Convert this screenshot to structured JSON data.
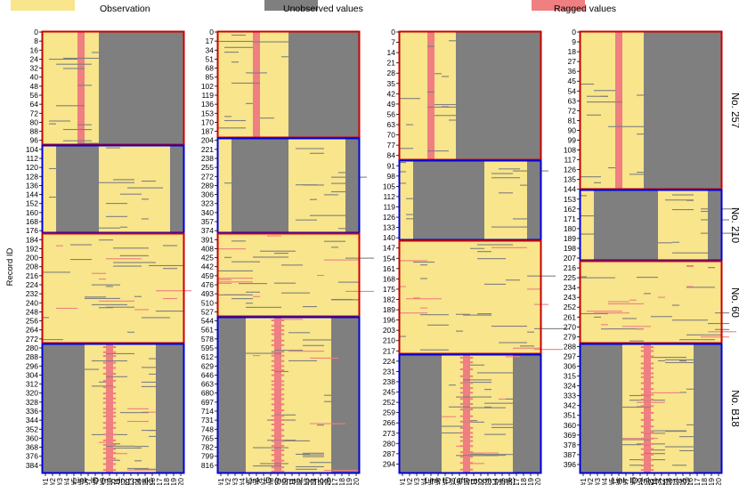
{
  "chart_data": {
    "type": "heatmap",
    "legend": {
      "placement": "top",
      "items": [
        {
          "key": "observation",
          "label": "Observation",
          "color": "#f8e58c"
        },
        {
          "key": "unobserved",
          "label": "Unobserved values",
          "color": "#7f7f7f"
        },
        {
          "key": "ragged",
          "label": "Ragged values",
          "color": "#ef7f80"
        }
      ]
    },
    "ylabel": "Record ID",
    "xticks": [
      "#1",
      "#2",
      "#3",
      "#4",
      "#5",
      "#6",
      "#7",
      "#8",
      "#9",
      "#10",
      "#11",
      "#12",
      "#13",
      "#14",
      "#15",
      "#16",
      "#17",
      "#18",
      "#19",
      "#20"
    ],
    "block_border_colors": [
      "#cc0000",
      "#0000dd",
      "#cc0000",
      "#0000dd"
    ],
    "block_labels": [
      "No. 257",
      "No. 210",
      "No. 60",
      "No. B18"
    ],
    "panels": [
      {
        "xlabel": "Link ID (moring peak)",
        "yticks": [
          "0",
          "8",
          "16",
          "24",
          "32",
          "40",
          "48",
          "56",
          "64",
          "72",
          "80",
          "88",
          "96",
          "104",
          "112",
          "120",
          "128",
          "136",
          "144",
          "152",
          "160",
          "168",
          "176",
          "184",
          "192",
          "200",
          "208",
          "216",
          "224",
          "232",
          "240",
          "248",
          "256",
          "264",
          "272",
          "280",
          "288",
          "296",
          "304",
          "312",
          "320",
          "328",
          "336",
          "344",
          "352",
          "360",
          "368",
          "376",
          "384"
        ],
        "blocks": [
          {
            "id_range": [
              0,
              106
            ],
            "observed_links": [
              "#1",
              "#2",
              "#3",
              "#4",
              "#5",
              "#6",
              "#7",
              "#8"
            ],
            "ragged_links": [
              "#6"
            ],
            "unobserved_links": [
              "#9",
              "#10",
              "#11",
              "#12",
              "#13",
              "#14",
              "#15",
              "#16",
              "#17",
              "#18",
              "#19",
              "#20"
            ]
          },
          {
            "id_range": [
              107,
              187
            ],
            "observed_links": [
              "#1",
              "#2",
              "#9",
              "#10",
              "#11",
              "#12",
              "#13",
              "#14",
              "#15",
              "#16",
              "#17",
              "#18"
            ],
            "ragged_links": [],
            "unobserved_links": [
              "#3",
              "#4",
              "#5",
              "#6",
              "#7",
              "#8",
              "#19",
              "#20"
            ]
          },
          {
            "id_range": [
              188,
              294
            ],
            "observed_links": [
              "#1",
              "#2",
              "#3",
              "#4",
              "#5",
              "#6",
              "#7",
              "#8",
              "#9",
              "#10",
              "#11",
              "#12",
              "#13",
              "#14",
              "#15",
              "#16",
              "#17",
              "#18",
              "#19",
              "#20"
            ],
            "ragged_links": [],
            "unobserved_links": []
          },
          {
            "id_range": [
              295,
              390
            ],
            "observed_links": [
              "#7",
              "#8",
              "#9",
              "#10",
              "#11",
              "#12",
              "#13",
              "#14",
              "#15",
              "#16"
            ],
            "ragged_links": [
              "#10"
            ],
            "unobserved_links": [
              "#1",
              "#2",
              "#3",
              "#4",
              "#5",
              "#6",
              "#17",
              "#18",
              "#19",
              "#20"
            ]
          }
        ]
      },
      {
        "xlabel": "Link ID (normal period)",
        "yticks": [
          "0",
          "17",
          "34",
          "51",
          "68",
          "85",
          "102",
          "119",
          "136",
          "153",
          "170",
          "187",
          "204",
          "221",
          "238",
          "255",
          "272",
          "289",
          "306",
          "323",
          "340",
          "357",
          "374",
          "391",
          "408",
          "425",
          "442",
          "459",
          "476",
          "493",
          "510",
          "527",
          "544",
          "561",
          "578",
          "595",
          "612",
          "629",
          "646",
          "663",
          "680",
          "697",
          "714",
          "731",
          "748",
          "765",
          "782",
          "799",
          "816"
        ],
        "blocks": [
          {
            "id_range": [
              0,
              213
            ],
            "observed_links": [
              "#1",
              "#2",
              "#3",
              "#4",
              "#5",
              "#6",
              "#7",
              "#8",
              "#9",
              "#10"
            ],
            "ragged_links": [
              "#6"
            ],
            "unobserved_links": [
              "#11",
              "#12",
              "#13",
              "#14",
              "#15",
              "#16",
              "#17",
              "#18",
              "#19",
              "#20"
            ]
          },
          {
            "id_range": [
              214,
              395
            ],
            "observed_links": [
              "#1",
              "#2",
              "#11",
              "#12",
              "#13",
              "#14",
              "#15",
              "#16",
              "#17",
              "#18"
            ],
            "ragged_links": [],
            "unobserved_links": [
              "#3",
              "#4",
              "#5",
              "#6",
              "#7",
              "#8",
              "#9",
              "#10",
              "#19",
              "#20"
            ]
          },
          {
            "id_range": [
              396,
              565
            ],
            "observed_links": [
              "#1",
              "#2",
              "#3",
              "#4",
              "#5",
              "#6",
              "#7",
              "#8",
              "#9",
              "#10",
              "#11",
              "#12",
              "#13",
              "#14",
              "#15",
              "#16",
              "#17",
              "#18",
              "#19",
              "#20"
            ],
            "ragged_links": [],
            "unobserved_links": []
          },
          {
            "id_range": [
              566,
              826
            ],
            "observed_links": [
              "#5",
              "#6",
              "#7",
              "#8",
              "#9",
              "#10",
              "#11",
              "#12",
              "#13",
              "#14",
              "#15",
              "#16"
            ],
            "ragged_links": [
              "#9"
            ],
            "unobserved_links": [
              "#1",
              "#2",
              "#3",
              "#4",
              "#17",
              "#18",
              "#19",
              "#20"
            ]
          }
        ]
      },
      {
        "xlabel": "Link ID (afternoon peak)",
        "yticks": [
          "0",
          "7",
          "14",
          "21",
          "28",
          "35",
          "42",
          "49",
          "56",
          "63",
          "70",
          "77",
          "84",
          "91",
          "98",
          "105",
          "112",
          "119",
          "126",
          "133",
          "140",
          "147",
          "154",
          "161",
          "168",
          "175",
          "182",
          "189",
          "196",
          "203",
          "210",
          "217",
          "224",
          "231",
          "238",
          "245",
          "252",
          "259",
          "266",
          "273",
          "280",
          "287",
          "294"
        ],
        "blocks": [
          {
            "id_range": [
              0,
              94
            ],
            "observed_links": [
              "#1",
              "#2",
              "#3",
              "#4",
              "#5",
              "#6",
              "#7",
              "#8"
            ],
            "ragged_links": [
              "#5"
            ],
            "unobserved_links": [
              "#9",
              "#10",
              "#11",
              "#12",
              "#13",
              "#14",
              "#15",
              "#16",
              "#17",
              "#18",
              "#19",
              "#20"
            ]
          },
          {
            "id_range": [
              95,
              149
            ],
            "observed_links": [
              "#1",
              "#2",
              "#13",
              "#14",
              "#15",
              "#16",
              "#17",
              "#18"
            ],
            "ragged_links": [],
            "unobserved_links": [
              "#3",
              "#4",
              "#5",
              "#6",
              "#7",
              "#8",
              "#9",
              "#10",
              "#11",
              "#12",
              "#19",
              "#20"
            ]
          },
          {
            "id_range": [
              150,
              230
            ],
            "observed_links": [
              "#1",
              "#2",
              "#3",
              "#4",
              "#5",
              "#6",
              "#7",
              "#8",
              "#9",
              "#10",
              "#11",
              "#12",
              "#13",
              "#14",
              "#15",
              "#16",
              "#17",
              "#18",
              "#19",
              "#20"
            ],
            "ragged_links": [],
            "unobserved_links": []
          },
          {
            "id_range": [
              231,
              298
            ],
            "observed_links": [
              "#7",
              "#8",
              "#9",
              "#10",
              "#11",
              "#12",
              "#13",
              "#14",
              "#15",
              "#16"
            ],
            "ragged_links": [
              "#10"
            ],
            "unobserved_links": [
              "#1",
              "#2",
              "#3",
              "#4",
              "#5",
              "#6",
              "#17",
              "#18",
              "#19",
              "#20"
            ]
          }
        ]
      },
      {
        "xlabel": "Link ID (night period)",
        "yticks": [
          "0",
          "9",
          "18",
          "27",
          "36",
          "45",
          "54",
          "63",
          "72",
          "81",
          "90",
          "99",
          "108",
          "117",
          "126",
          "135",
          "144",
          "153",
          "162",
          "171",
          "180",
          "189",
          "198",
          "207",
          "216",
          "225",
          "234",
          "243",
          "252",
          "261",
          "270",
          "279",
          "288",
          "297",
          "306",
          "315",
          "324",
          "333",
          "342",
          "351",
          "360",
          "369",
          "378",
          "387",
          "396"
        ],
        "blocks": [
          {
            "id_range": [
              0,
              157
            ],
            "observed_links": [
              "#1",
              "#2",
              "#3",
              "#4",
              "#5",
              "#6",
              "#7",
              "#8",
              "#9"
            ],
            "ragged_links": [
              "#6"
            ],
            "unobserved_links": [
              "#10",
              "#11",
              "#12",
              "#13",
              "#14",
              "#15",
              "#16",
              "#17",
              "#18",
              "#19",
              "#20"
            ]
          },
          {
            "id_range": [
              158,
              221
            ],
            "observed_links": [
              "#1",
              "#2",
              "#12",
              "#13",
              "#14",
              "#15",
              "#16",
              "#17",
              "#18"
            ],
            "ragged_links": [],
            "unobserved_links": [
              "#3",
              "#4",
              "#5",
              "#6",
              "#7",
              "#8",
              "#9",
              "#10",
              "#11",
              "#19",
              "#20"
            ]
          },
          {
            "id_range": [
              222,
              302
            ],
            "observed_links": [
              "#1",
              "#2",
              "#3",
              "#4",
              "#5",
              "#6",
              "#7",
              "#8",
              "#9",
              "#10",
              "#11",
              "#12",
              "#13",
              "#14",
              "#15",
              "#16",
              "#17",
              "#18",
              "#19",
              "#20"
            ],
            "ragged_links": [],
            "unobserved_links": []
          },
          {
            "id_range": [
              303,
              401
            ],
            "observed_links": [
              "#7",
              "#8",
              "#9",
              "#10",
              "#11",
              "#12",
              "#13",
              "#14",
              "#15",
              "#16"
            ],
            "ragged_links": [
              "#10"
            ],
            "unobserved_links": [
              "#1",
              "#2",
              "#3",
              "#4",
              "#5",
              "#6",
              "#17",
              "#18",
              "#19",
              "#20"
            ]
          }
        ]
      }
    ]
  }
}
